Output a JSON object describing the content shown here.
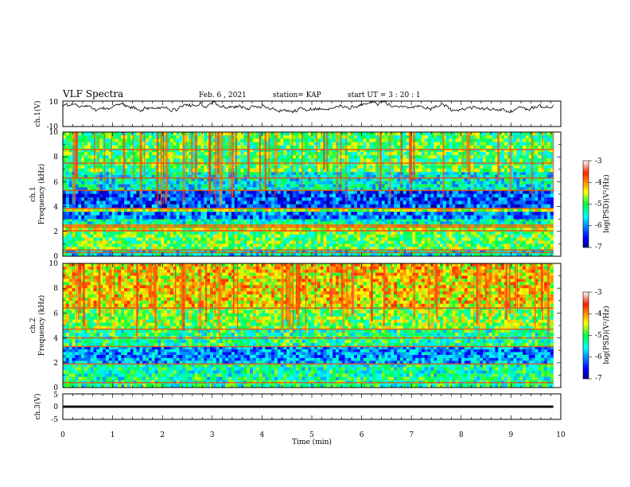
{
  "header": {
    "title": "VLF Spectra",
    "date": "Feb. 6 , 2021",
    "station": "station= KAP",
    "start": "start  UT =   3 : 20 : 1"
  },
  "chart_data": [
    {
      "type": "line",
      "panel": "ch1-waveform",
      "ylabel": "ch.1(V)",
      "ylim": [
        -10,
        10
      ],
      "yticks": [
        "10",
        "-10"
      ],
      "xlim": [
        0,
        10
      ],
      "color": "#000000",
      "baseline_approx": 5
    },
    {
      "type": "heatmap",
      "panel": "ch1-spectrogram",
      "ylabel": "ch.1",
      "ylabel2": "Frequency  (kHz)",
      "ylim": [
        0,
        10
      ],
      "yticks": [
        "0",
        "2",
        "4",
        "6",
        "8",
        "10"
      ],
      "xlim": [
        0,
        9.85
      ],
      "colorbar": {
        "label": "log(PSD)(V²/Hz)",
        "range": [
          -7,
          -3
        ],
        "ticks": [
          "-3",
          "-4",
          "-5",
          "-6",
          "-7"
        ]
      },
      "bands": [
        {
          "from_khz": 0,
          "to_khz": 0.5,
          "level": -5.5
        },
        {
          "from_khz": 0.5,
          "to_khz": 2.0,
          "level": -4.9
        },
        {
          "from_khz": 2.0,
          "to_khz": 2.6,
          "level": -4.6
        },
        {
          "from_khz": 2.6,
          "to_khz": 3.0,
          "level": -5.4
        },
        {
          "from_khz": 3.0,
          "to_khz": 3.6,
          "level": -6.1
        },
        {
          "from_khz": 3.6,
          "to_khz": 3.9,
          "level": -4.6
        },
        {
          "from_khz": 3.9,
          "to_khz": 5.3,
          "level": -6.3
        },
        {
          "from_khz": 5.3,
          "to_khz": 6.8,
          "level": -5.5
        },
        {
          "from_khz": 6.8,
          "to_khz": 10.0,
          "level": -5.0
        }
      ],
      "lines_khz": [
        0.3,
        0.5,
        2.05,
        2.35,
        2.5,
        3.85,
        5.3,
        6.3,
        7.5,
        8.6
      ]
    },
    {
      "type": "heatmap",
      "panel": "ch2-spectrogram",
      "ylabel": "ch.2",
      "ylabel2": "Frequency  (kHz)",
      "ylim": [
        0,
        10
      ],
      "yticks": [
        "0",
        "2",
        "4",
        "6",
        "8",
        "10"
      ],
      "xlim": [
        0,
        9.85
      ],
      "colorbar": {
        "label": "log(PSD)(V²/Hz)",
        "range": [
          -7,
          -3
        ],
        "ticks": [
          "-3",
          "-4",
          "-5",
          "-6",
          "-7"
        ]
      },
      "bands": [
        {
          "from_khz": 0,
          "to_khz": 0.6,
          "level": -5.2
        },
        {
          "from_khz": 0.6,
          "to_khz": 1.9,
          "level": -5.3
        },
        {
          "from_khz": 1.9,
          "to_khz": 2.4,
          "level": -5.9
        },
        {
          "from_khz": 2.4,
          "to_khz": 3.3,
          "level": -6.0
        },
        {
          "from_khz": 3.3,
          "to_khz": 4.7,
          "level": -5.2
        },
        {
          "from_khz": 4.7,
          "to_khz": 6.5,
          "level": -4.8
        },
        {
          "from_khz": 6.5,
          "to_khz": 10.0,
          "level": -4.3
        }
      ],
      "lines_khz": [
        0.4,
        1.9,
        3.3,
        4.0,
        4.7,
        6.4
      ]
    },
    {
      "type": "line",
      "panel": "ch3-waveform",
      "ylabel": "ch.3(V)",
      "ylim": [
        -5,
        5
      ],
      "yticks": [
        "5",
        "0",
        "-5"
      ],
      "xlim": [
        0,
        9.85
      ],
      "color": "#000000",
      "band": [
        -0.45,
        0.45
      ]
    }
  ],
  "xaxis": {
    "label": "Time  (min)",
    "ticks": [
      "0",
      "1",
      "2",
      "3",
      "4",
      "5",
      "6",
      "7",
      "8",
      "9",
      "10"
    ]
  }
}
